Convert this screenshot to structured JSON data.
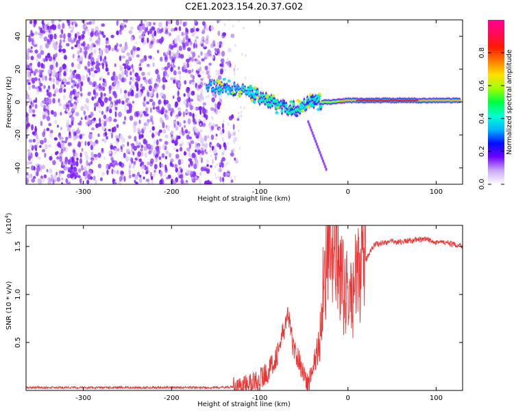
{
  "title": "C2E1.2023.154.20.37.G02",
  "chart_data": [
    {
      "type": "heatmap",
      "xlabel": "Height of straight line (km)",
      "ylabel": "Frequency (Hz)",
      "xlim": [
        -365,
        130
      ],
      "ylim": [
        -50,
        50
      ],
      "x_ticks": [
        -300,
        -200,
        -100,
        0,
        100
      ],
      "y_ticks": [
        -40,
        -20,
        0,
        20,
        40
      ],
      "colorbar": {
        "label": "Normalized spectral amplitude",
        "range": [
          0.0,
          1.0
        ],
        "ticks": [
          0.0,
          0.2,
          0.4,
          0.6,
          0.8
        ],
        "colors": [
          "#ffffff",
          "#c9a8f5",
          "#6f00ff",
          "#0010ff",
          "#00b8ff",
          "#00ffd0",
          "#00ff40",
          "#a0ff00",
          "#ffe000",
          "#ff7a00",
          "#ff1a00",
          "#ff0a5a",
          "#ff0090"
        ]
      },
      "ridge": [
        {
          "x": -160,
          "y": 10
        },
        {
          "x": -140,
          "y": 9
        },
        {
          "x": -120,
          "y": 7
        },
        {
          "x": -100,
          "y": 3
        },
        {
          "x": -80,
          "y": -2
        },
        {
          "x": -60,
          "y": -4
        },
        {
          "x": -40,
          "y": 0
        },
        {
          "x": -20,
          "y": 0
        },
        {
          "x": 0,
          "y": 1
        },
        {
          "x": 20,
          "y": 1
        },
        {
          "x": 60,
          "y": 1
        },
        {
          "x": 100,
          "y": 1
        },
        {
          "x": 128,
          "y": 1
        }
      ]
    },
    {
      "type": "line",
      "xlabel": "Height of straight line (km)",
      "ylabel": "SNR (10 * v/v)",
      "y_multiplier": "(x10^4)",
      "xlim": [
        -365,
        130
      ],
      "ylim": [
        0,
        1.72
      ],
      "x_ticks": [
        -300,
        -200,
        -100,
        0,
        100
      ],
      "y_ticks": [
        0.5,
        1.0,
        1.5
      ],
      "y_tick_labels": [
        "0.5",
        "1.0",
        "1.5"
      ],
      "series": [
        {
          "color": "#ee3333",
          "x": [
            -365,
            -300,
            -200,
            -150,
            -120,
            -110,
            -100,
            -90,
            -80,
            -72,
            -68,
            -62,
            -55,
            -45,
            -38,
            -32,
            -28,
            -24,
            -20,
            -15,
            -10,
            -5,
            0,
            5,
            10,
            15,
            20,
            25,
            30,
            40,
            50,
            60,
            70,
            80,
            90,
            100,
            110,
            120,
            130
          ],
          "y": [
            0.03,
            0.03,
            0.03,
            0.03,
            0.04,
            0.07,
            0.12,
            0.2,
            0.38,
            0.65,
            0.8,
            0.45,
            0.3,
            0.05,
            0.3,
            0.5,
            1.15,
            1.3,
            1.35,
            1.5,
            1.25,
            1.05,
            1.0,
            0.95,
            1.2,
            1.3,
            1.35,
            1.45,
            1.52,
            1.54,
            1.55,
            1.55,
            1.56,
            1.57,
            1.57,
            1.55,
            1.54,
            1.52,
            1.51
          ]
        }
      ]
    }
  ]
}
